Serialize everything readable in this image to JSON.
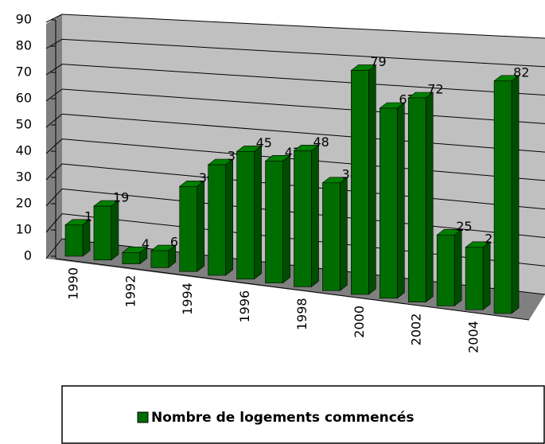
{
  "chart_data": {
    "type": "bar3d",
    "categories": [
      "1990",
      null,
      "1992",
      null,
      "1994",
      null,
      "1996",
      null,
      "1998",
      null,
      "2000",
      null,
      "2002",
      null,
      "2004",
      null
    ],
    "series": [
      {
        "name": "Nombre de logements commencés",
        "color": "#008000",
        "values": [
          11,
          19,
          4,
          6,
          30,
          39,
          45,
          43,
          48,
          38,
          79,
          67,
          72,
          25,
          22,
          82
        ]
      }
    ],
    "ylim": [
      0,
      90
    ],
    "yticks": [
      0,
      10,
      20,
      30,
      40,
      50,
      60,
      70,
      80,
      90
    ],
    "grid": true,
    "legend": "bottom"
  }
}
